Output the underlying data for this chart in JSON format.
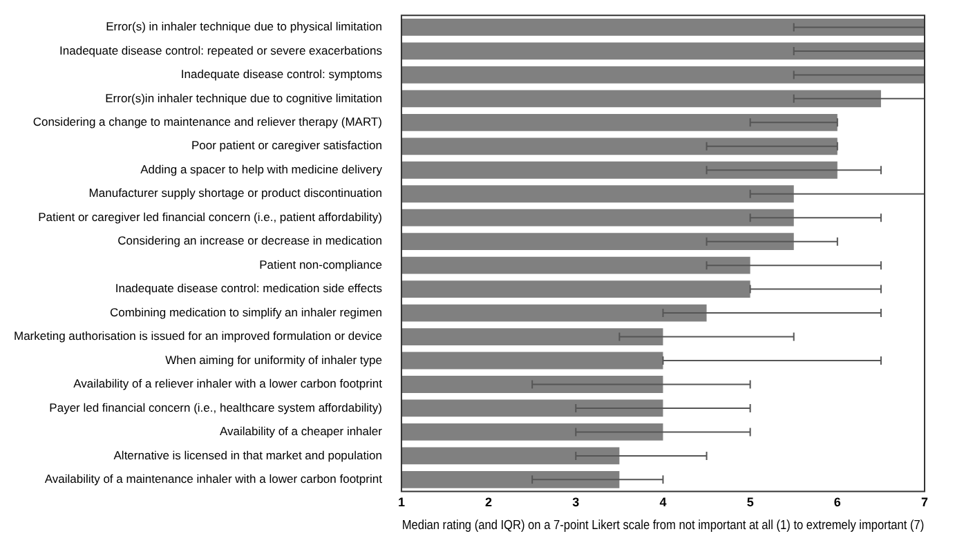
{
  "chart_data": {
    "type": "bar",
    "orientation": "horizontal",
    "xlabel": "Median rating (and IQR) on a 7-point Likert scale from not important at all (1) to extremely important (7)",
    "categories": [
      "Error(s) in inhaler technique due to physical limitation",
      "Inadequate disease control: repeated or severe exacerbations",
      "Inadequate disease control: symptoms",
      "Error(s)in inhaler technique due to cognitive limitation",
      "Considering a change to maintenance and reliever therapy (MART)",
      "Poor patient or caregiver satisfaction",
      "Adding a spacer to help with medicine delivery",
      "Manufacturer supply shortage or product discontinuation",
      "Patient or caregiver led financial concern (i.e., patient affordability)",
      "Considering an increase or decrease in medication",
      "Patient non-compliance",
      "Inadequate disease control: medication side effects",
      "Combining medication to simplify an inhaler regimen",
      "Marketing authorisation is issued for an improved formulation or device",
      "When aiming for uniformity of inhaler type",
      "Availability of a reliever inhaler with a lower carbon footprint",
      "Payer led financial concern (i.e., healthcare system affordability)",
      "Availability of a cheaper inhaler",
      "Alternative is licensed in that market and population",
      "Availability of a maintenance inhaler with a lower carbon footprint"
    ],
    "values": [
      7,
      7,
      7,
      6.5,
      6,
      6,
      6,
      5.5,
      5.5,
      5.5,
      5,
      5,
      4.5,
      4,
      4,
      4,
      4,
      4,
      3.5,
      3.5
    ],
    "errors": [
      [
        5.5,
        7
      ],
      [
        5.5,
        7
      ],
      [
        5.5,
        7
      ],
      [
        5.5,
        7
      ],
      [
        5,
        6
      ],
      [
        4.5,
        6
      ],
      [
        4.5,
        6.5
      ],
      [
        5,
        7
      ],
      [
        5,
        6.5
      ],
      [
        4.5,
        6
      ],
      [
        4.5,
        6.5
      ],
      [
        5,
        6.5
      ],
      [
        4,
        6.5
      ],
      [
        3.5,
        5.5
      ],
      [
        4,
        6.5
      ],
      [
        2.5,
        5
      ],
      [
        3,
        5
      ],
      [
        3,
        5
      ],
      [
        3,
        4.5
      ],
      [
        2.5,
        4
      ]
    ],
    "color": "#808080",
    "xlim": [
      1,
      7
    ],
    "xticks": [
      1,
      2,
      3,
      4,
      5,
      6,
      7
    ],
    "grid": false,
    "legend": false
  }
}
